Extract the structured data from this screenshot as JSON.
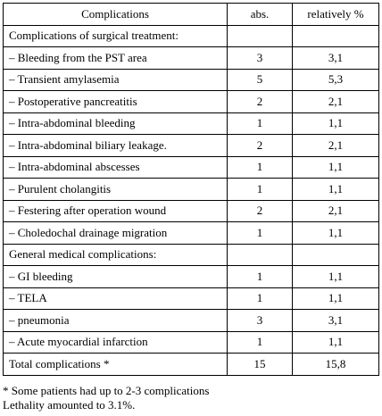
{
  "table": {
    "header": [
      "Complications",
      "abs.",
      "relatively %"
    ],
    "rows": [
      [
        "Complications of surgical treatment:"
      ],
      [
        "– Bleeding from the PST area",
        "3",
        "3,1"
      ],
      [
        "– Transient  amylasemia",
        "5",
        "5,3"
      ],
      [
        "– Postoperative  pancreatitis",
        "2",
        "2,1"
      ],
      [
        "–  Intra-abdominal bleeding",
        "1",
        "1,1"
      ],
      [
        "– Intra-abdominal biliary leakage.",
        "2",
        "2,1"
      ],
      [
        "– Intra-abdominal  abscesses",
        "1",
        "1,1"
      ],
      [
        "– Purulent  cholangitis",
        "1",
        "1,1"
      ],
      [
        "– Festering after operation wound",
        "2",
        "2,1"
      ],
      [
        "– Choledochal drainage migration",
        "1",
        "1,1"
      ],
      [
        "General medical complications:"
      ],
      [
        "– GI bleeding",
        "1",
        "1,1"
      ],
      [
        "– TELA",
        "1",
        "1,1"
      ],
      [
        "– pneumonia",
        "3",
        "3,1"
      ],
      [
        "– Acute myocardial infarction",
        "1",
        "1,1"
      ],
      [
        "Total complications  *",
        "15",
        "15,8"
      ]
    ]
  },
  "footnotes": [
    "* Some patients had up to 2-3 complications",
    "Lethality amounted to 3.1%."
  ]
}
